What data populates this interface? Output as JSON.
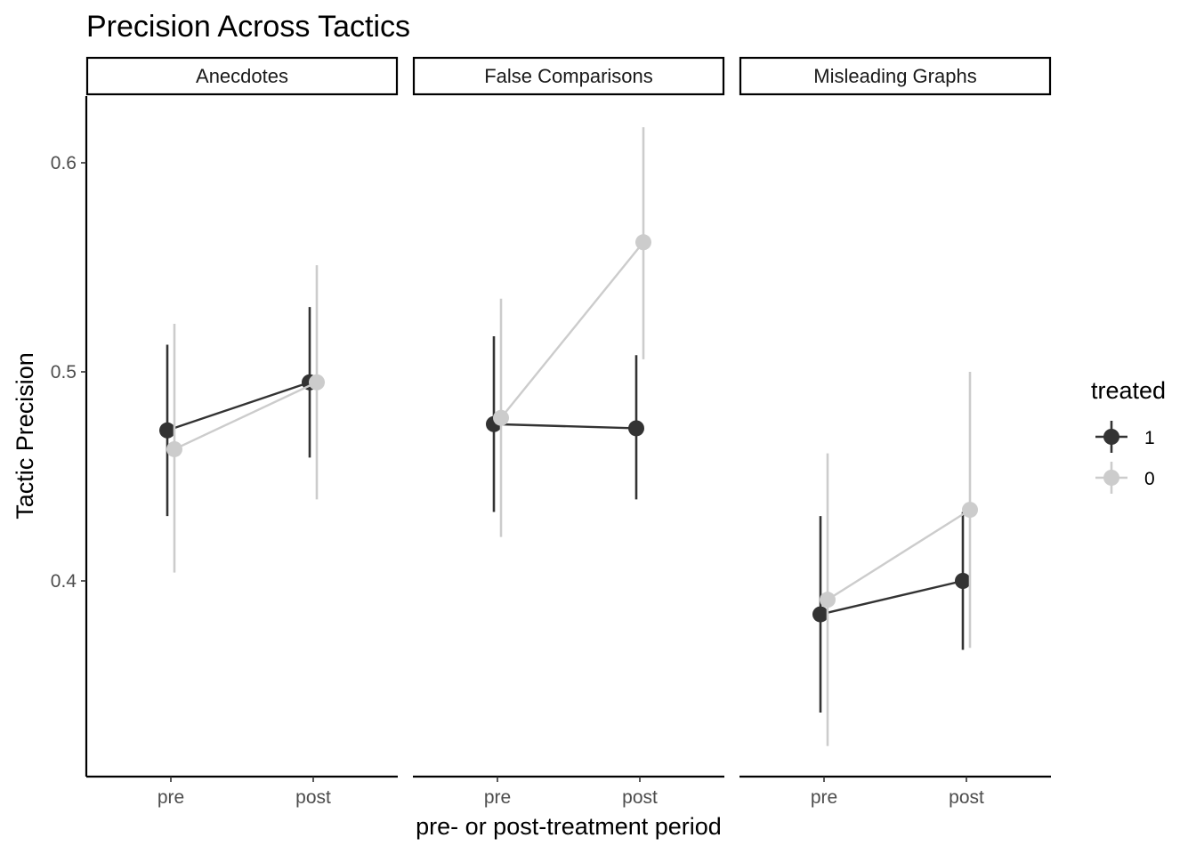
{
  "chart_data": {
    "type": "line",
    "title": "Precision Across Tactics",
    "xlabel": "pre- or post-treatment period",
    "ylabel": "Tactic Precision",
    "categories": [
      "pre",
      "post"
    ],
    "ylim": [
      0.3,
      0.625
    ],
    "yticks": [
      0.4,
      0.5,
      0.6
    ],
    "ytick_labels": [
      "0.4",
      "0.5",
      "0.6"
    ],
    "grid": false,
    "legend": {
      "title": "treated",
      "position": "right",
      "entries": [
        {
          "label": "1",
          "color": "#333333"
        },
        {
          "label": "0",
          "color": "#cccccc"
        }
      ]
    },
    "panels": [
      {
        "name": "Anecdotes",
        "series": [
          {
            "name": "1",
            "color": "#333333",
            "values": [
              0.472,
              0.495
            ],
            "lower": [
              0.431,
              0.459
            ],
            "upper": [
              0.513,
              0.531
            ]
          },
          {
            "name": "0",
            "color": "#cccccc",
            "values": [
              0.463,
              0.495
            ],
            "lower": [
              0.404,
              0.439
            ],
            "upper": [
              0.523,
              0.551
            ]
          }
        ]
      },
      {
        "name": "False Comparisons",
        "series": [
          {
            "name": "1",
            "color": "#333333",
            "values": [
              0.475,
              0.473
            ],
            "lower": [
              0.433,
              0.439
            ],
            "upper": [
              0.517,
              0.508
            ]
          },
          {
            "name": "0",
            "color": "#cccccc",
            "values": [
              0.478,
              0.562
            ],
            "lower": [
              0.421,
              0.506
            ],
            "upper": [
              0.535,
              0.617
            ]
          }
        ]
      },
      {
        "name": "Misleading Graphs",
        "series": [
          {
            "name": "1",
            "color": "#333333",
            "values": [
              0.384,
              0.4
            ],
            "lower": [
              0.337,
              0.367
            ],
            "upper": [
              0.431,
              0.433
            ]
          },
          {
            "name": "0",
            "color": "#cccccc",
            "values": [
              0.391,
              0.434
            ],
            "lower": [
              0.321,
              0.368
            ],
            "upper": [
              0.461,
              0.5
            ]
          }
        ]
      }
    ]
  }
}
